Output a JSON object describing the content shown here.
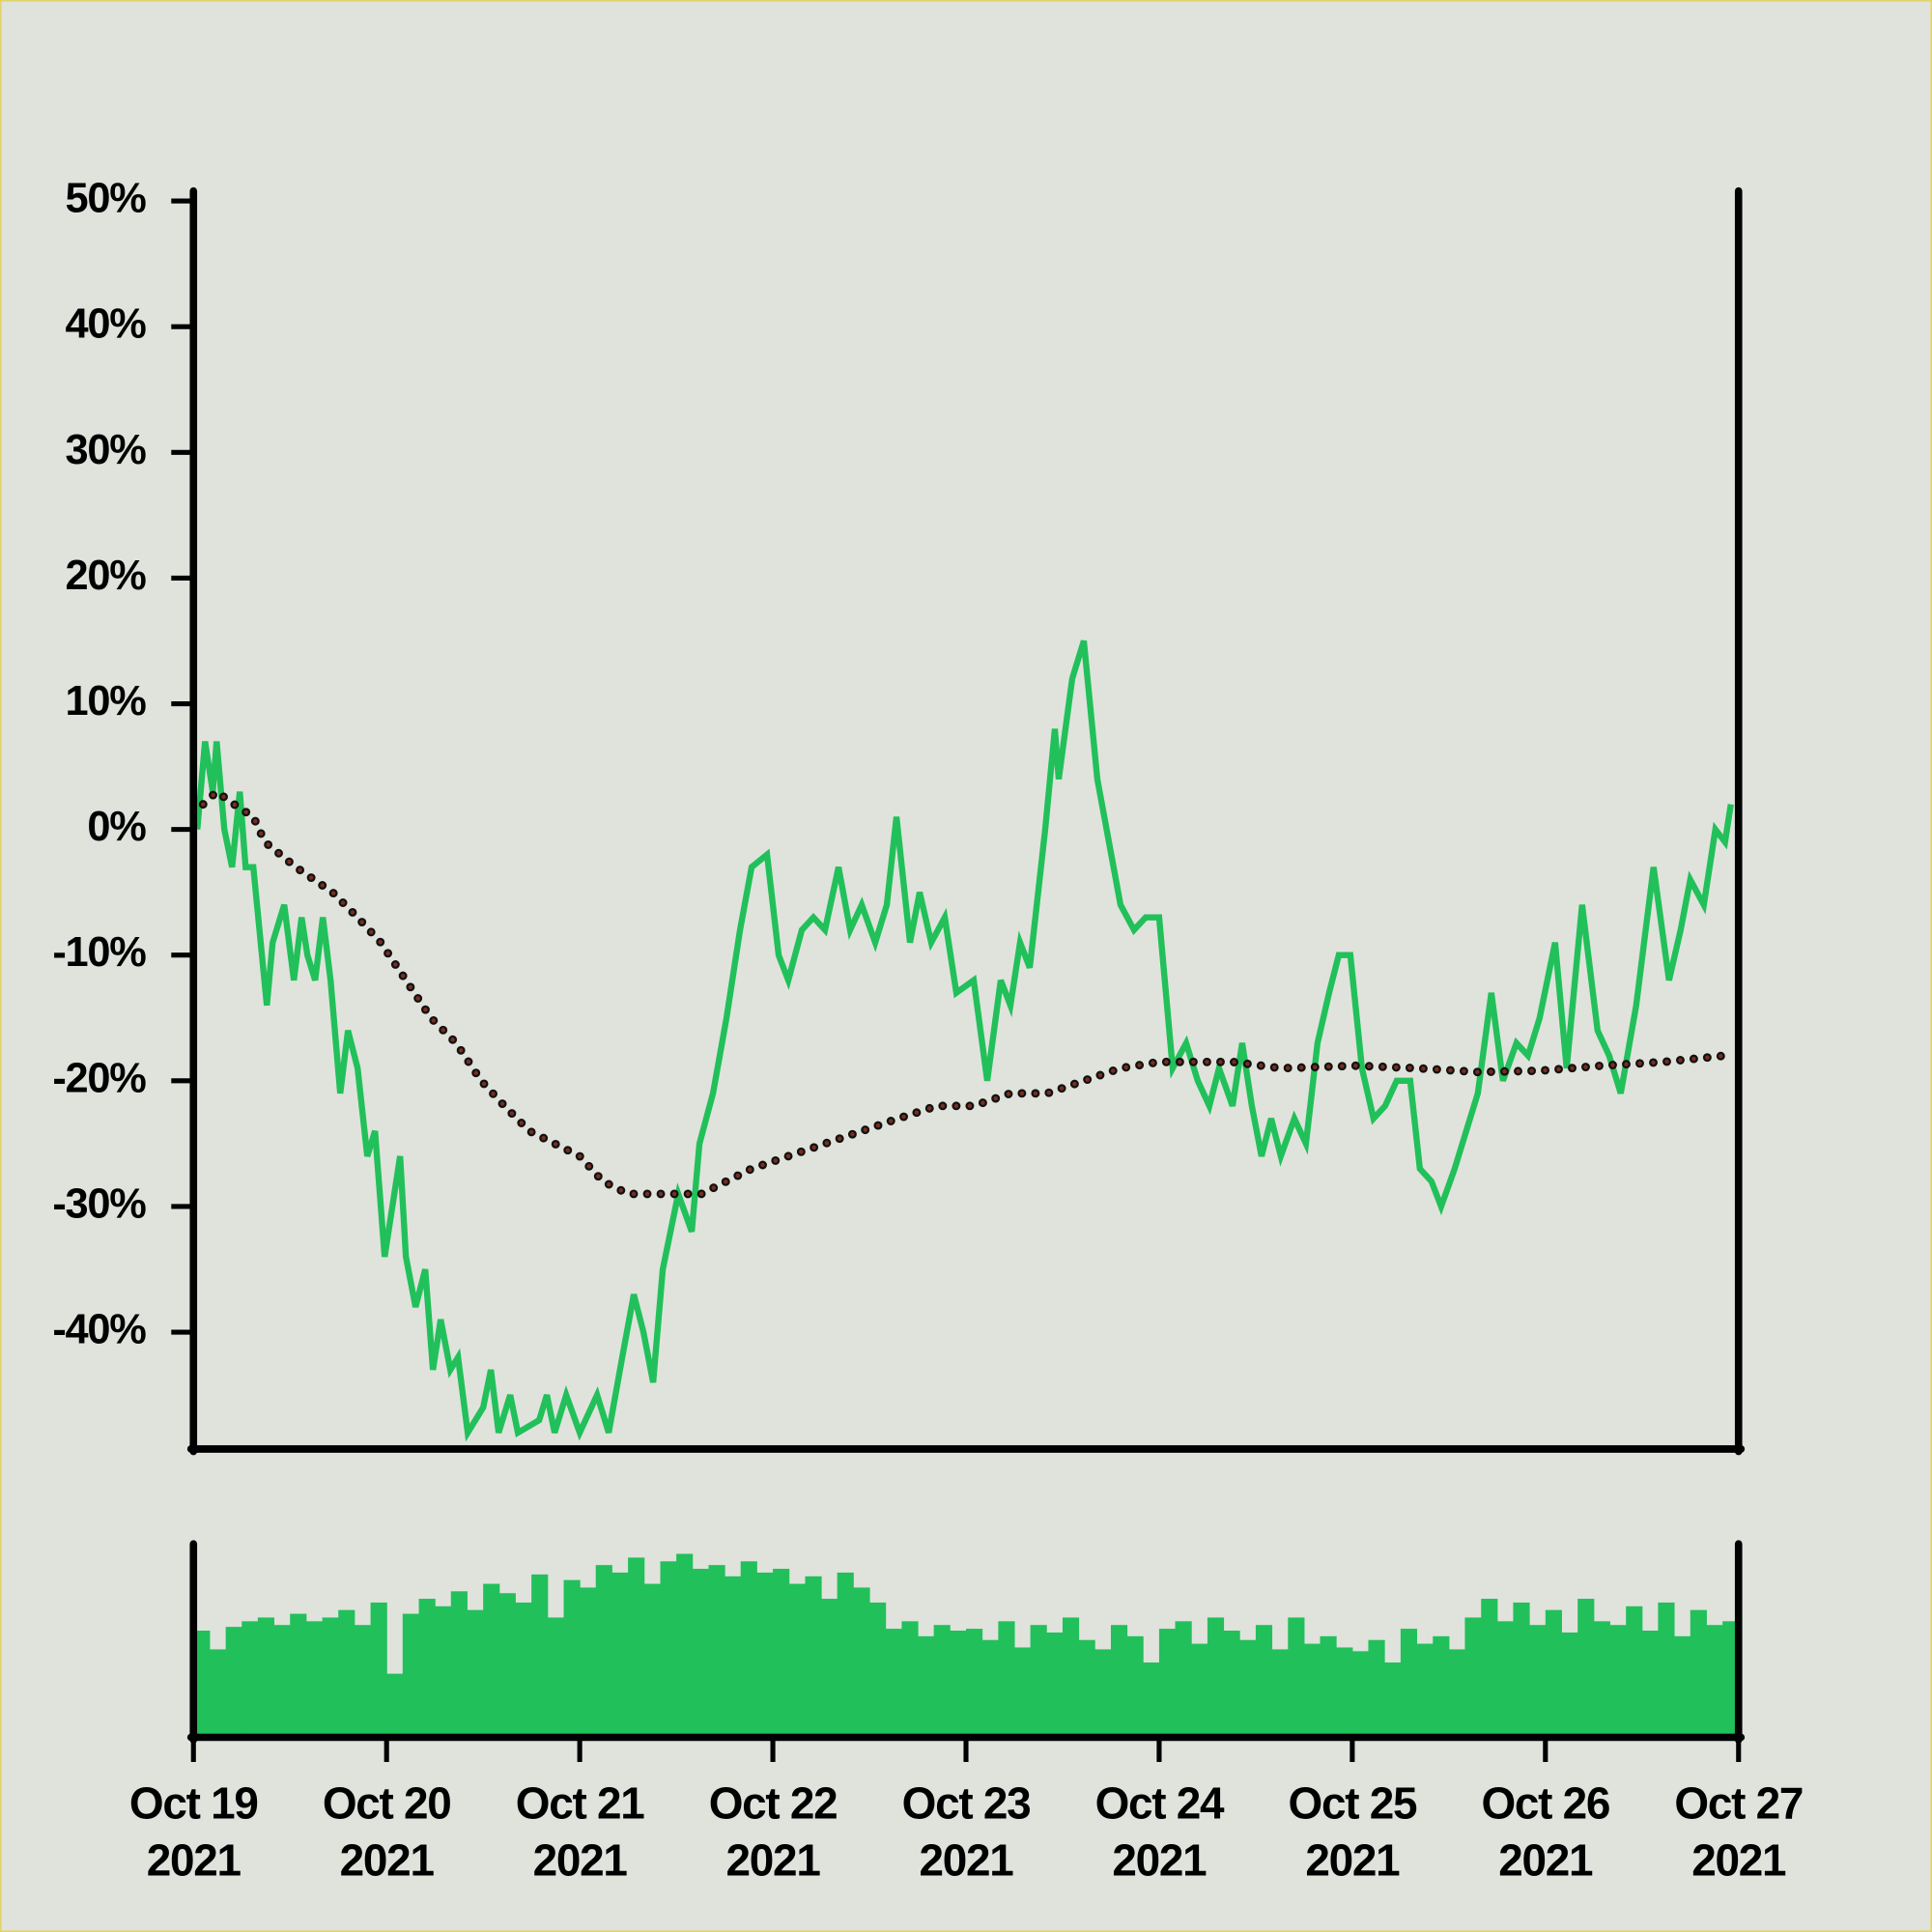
{
  "chart_data": [
    {
      "type": "line",
      "xlim": [
        0,
        8
      ],
      "ylim": [
        -49.2,
        50.8
      ],
      "yticks": [
        {
          "value": 50,
          "label": "50%"
        },
        {
          "value": 40,
          "label": "40%"
        },
        {
          "value": 30,
          "label": "30%"
        },
        {
          "value": 20,
          "label": "20%"
        },
        {
          "value": 10,
          "label": "10%"
        },
        {
          "value": 0,
          "label": "0%"
        },
        {
          "value": -10,
          "label": "-10%"
        },
        {
          "value": -20,
          "label": "-20%"
        },
        {
          "value": -30,
          "label": "-30%"
        },
        {
          "value": -40,
          "label": "-40%"
        }
      ],
      "series": [
        {
          "color": "#22c05a",
          "x": [
            0.02,
            0.06,
            0.1,
            0.12,
            0.16,
            0.2,
            0.24,
            0.27,
            0.31,
            0.38,
            0.41,
            0.47,
            0.52,
            0.56,
            0.59,
            0.63,
            0.67,
            0.71,
            0.76,
            0.8,
            0.85,
            0.9,
            0.94,
            0.99,
            1.03,
            1.07,
            1.1,
            1.15,
            1.2,
            1.24,
            1.28,
            1.33,
            1.37,
            1.42,
            1.5,
            1.54,
            1.58,
            1.64,
            1.68,
            1.79,
            1.83,
            1.87,
            1.93,
            2.0,
            2.09,
            2.15,
            2.22,
            2.28,
            2.33,
            2.38,
            2.43,
            2.51,
            2.58,
            2.62,
            2.69,
            2.76,
            2.83,
            2.89,
            2.97,
            3.03,
            3.08,
            3.15,
            3.21,
            3.27,
            3.34,
            3.4,
            3.46,
            3.53,
            3.59,
            3.64,
            3.71,
            3.76,
            3.82,
            3.89,
            3.95,
            4.04,
            4.11,
            4.18,
            4.23,
            4.28,
            4.33,
            4.41,
            4.46,
            4.48,
            4.55,
            4.61,
            4.68,
            4.74,
            4.8,
            4.87,
            4.93,
            5.0,
            5.07,
            5.14,
            5.2,
            5.26,
            5.31,
            5.38,
            5.43,
            5.48,
            5.53,
            5.58,
            5.63,
            5.7,
            5.76,
            5.82,
            5.88,
            5.93,
            5.99,
            6.05,
            6.11,
            6.17,
            6.23,
            6.3,
            6.35,
            6.41,
            6.46,
            6.53,
            6.59,
            6.65,
            6.72,
            6.78,
            6.85,
            6.91,
            6.97,
            7.05,
            7.11,
            7.19,
            7.27,
            7.33,
            7.39,
            7.47,
            7.56,
            7.64,
            7.7,
            7.75,
            7.82,
            7.88,
            7.93,
            7.96
          ],
          "values": [
            0,
            7,
            3,
            7,
            0,
            -3,
            3,
            -3,
            -3,
            -14,
            -9,
            -6,
            -12,
            -7,
            -10,
            -12,
            -7,
            -12,
            -21,
            -16,
            -19,
            -26,
            -24,
            -34,
            -30,
            -26,
            -34,
            -38,
            -35,
            -43,
            -39,
            -43,
            -42,
            -48,
            -46,
            -43,
            -48,
            -45,
            -48,
            -47,
            -45,
            -48,
            -45,
            -48,
            -45,
            -48,
            -42,
            -37,
            -40,
            -44,
            -35,
            -29,
            -32,
            -25,
            -21,
            -15,
            -8,
            -3,
            -2,
            -10,
            -12,
            -8,
            -7,
            -8,
            -3,
            -8,
            -6,
            -9,
            -6,
            1,
            -9,
            -5,
            -9,
            -7,
            -13,
            -12,
            -20,
            -12,
            -14,
            -9,
            -11,
            0,
            8,
            4,
            12,
            15,
            4,
            -1,
            -6,
            -8,
            -7,
            -7,
            -19,
            -17,
            -20,
            -22,
            -19,
            -22,
            -17,
            -22,
            -26,
            -23,
            -26,
            -23,
            -25,
            -17,
            -13,
            -10,
            -10,
            -19,
            -23,
            -22,
            -20,
            -20,
            -27,
            -28,
            -30,
            -27,
            -24,
            -21,
            -13,
            -20,
            -17,
            -18,
            -15,
            -9,
            -19,
            -6,
            -16,
            -18,
            -21,
            -14,
            -3,
            -12,
            -8,
            -4,
            -6,
            0,
            -1,
            2
          ]
        },
        {
          "color": "#7a2e1e",
          "style": "dotted",
          "x": [
            0.05,
            0.12,
            0.21,
            0.31,
            0.37,
            0.53,
            0.72,
            0.85,
            0.97,
            1.1,
            1.23,
            1.36,
            1.49,
            1.61,
            1.74,
            1.87,
            2.0,
            2.12,
            2.25,
            2.38,
            2.51,
            2.63,
            2.76,
            2.89,
            3.08,
            3.27,
            3.46,
            3.65,
            3.85,
            4.04,
            4.23,
            4.42,
            4.61,
            4.8,
            5.0,
            5.19,
            5.38,
            5.63,
            6.02,
            6.34,
            6.65,
            6.97,
            7.29,
            7.61,
            7.93
          ],
          "values": [
            2,
            3,
            2,
            1,
            -1,
            -3,
            -5,
            -7,
            -9,
            -12,
            -15,
            -17,
            -20,
            -22,
            -24,
            -25,
            -26,
            -28,
            -29,
            -29,
            -29,
            -29,
            -28,
            -27,
            -26,
            -25,
            -24,
            -23,
            -22,
            -22,
            -21,
            -21,
            -20,
            -19,
            -18.5,
            -18.5,
            -18.5,
            -19,
            -18.8,
            -19,
            -19.3,
            -19.2,
            -18.8,
            -18.5,
            -18
          ]
        }
      ]
    },
    {
      "type": "bar",
      "color": "#22c05a",
      "xlim": [
        0,
        8
      ],
      "ylim": [
        0,
        100
      ],
      "bar_width": 0.0833,
      "x": [
        0,
        0.083,
        0.167,
        0.25,
        0.333,
        0.417,
        0.5,
        0.583,
        0.667,
        0.75,
        0.833,
        0.917,
        1,
        1.083,
        1.167,
        1.25,
        1.333,
        1.417,
        1.5,
        1.583,
        1.667,
        1.75,
        1.833,
        1.917,
        2,
        2.083,
        2.167,
        2.25,
        2.333,
        2.417,
        2.5,
        2.583,
        2.667,
        2.75,
        2.833,
        2.917,
        3,
        3.083,
        3.167,
        3.25,
        3.333,
        3.417,
        3.5,
        3.583,
        3.667,
        3.75,
        3.833,
        3.917,
        4,
        4.083,
        4.167,
        4.25,
        4.333,
        4.417,
        4.5,
        4.583,
        4.667,
        4.75,
        4.833,
        4.917,
        5,
        5.083,
        5.167,
        5.25,
        5.333,
        5.417,
        5.5,
        5.583,
        5.667,
        5.75,
        5.833,
        5.917,
        6,
        6.083,
        6.167,
        6.25,
        6.333,
        6.417,
        6.5,
        6.583,
        6.667,
        6.75,
        6.833,
        6.917,
        7,
        7.083,
        7.167,
        7.25,
        7.333,
        7.417,
        7.5,
        7.583,
        7.667,
        7.75,
        7.833,
        7.917
      ],
      "values": [
        55,
        45,
        57,
        60,
        62,
        58,
        64,
        60,
        62,
        66,
        58,
        70,
        32,
        64,
        72,
        68,
        76,
        66,
        80,
        75,
        70,
        85,
        62,
        82,
        78,
        90,
        86,
        94,
        80,
        92,
        96,
        88,
        90,
        84,
        92,
        86,
        88,
        80,
        84,
        72,
        86,
        78,
        70,
        56,
        60,
        52,
        58,
        55,
        56,
        50,
        60,
        46,
        58,
        54,
        62,
        50,
        45,
        58,
        52,
        38,
        56,
        60,
        48,
        62,
        55,
        50,
        58,
        45,
        62,
        48,
        52,
        46,
        44,
        50,
        38,
        56,
        48,
        52,
        45,
        62,
        72,
        60,
        70,
        58,
        66,
        54,
        72,
        60,
        58,
        68,
        55,
        70,
        52,
        66,
        58,
        60
      ],
      "xticks": [
        {
          "value": 0,
          "label": "Oct 19\n2021"
        },
        {
          "value": 1,
          "label": "Oct 20\n2021"
        },
        {
          "value": 2,
          "label": "Oct 21\n2021"
        },
        {
          "value": 3,
          "label": "Oct 22\n2021"
        },
        {
          "value": 4,
          "label": "Oct 23\n2021"
        },
        {
          "value": 5,
          "label": "Oct 24\n2021"
        },
        {
          "value": 6,
          "label": "Oct 25\n2021"
        },
        {
          "value": 7,
          "label": "Oct 26\n2021"
        },
        {
          "value": 8,
          "label": "Oct 27\n2021"
        }
      ]
    }
  ]
}
